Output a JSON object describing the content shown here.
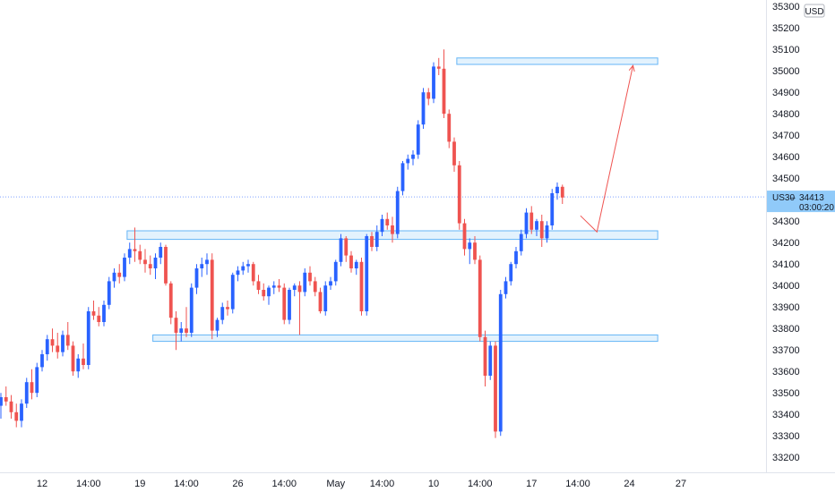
{
  "chart_data": {
    "type": "candlestick",
    "symbol": "US30",
    "currency": "USD",
    "last_price_label": "34413",
    "last_price": 34413,
    "countdown": "03:00:20",
    "ylim": [
      33130,
      35330
    ],
    "y_ticks": [
      33200,
      33300,
      33400,
      33500,
      33600,
      33700,
      33800,
      33900,
      34000,
      34100,
      34200,
      34300,
      34400,
      34500,
      34600,
      34700,
      34800,
      34900,
      35000,
      35100,
      35200,
      35300
    ],
    "x_ticks": [
      {
        "label": "12",
        "idx": 8
      },
      {
        "label": "14:00",
        "idx": 17
      },
      {
        "label": "19",
        "idx": 27
      },
      {
        "label": "14:00",
        "idx": 36
      },
      {
        "label": "26",
        "idx": 46
      },
      {
        "label": "14:00",
        "idx": 55
      },
      {
        "label": "May",
        "idx": 65
      },
      {
        "label": "14:00",
        "idx": 74
      },
      {
        "label": "10",
        "idx": 84
      },
      {
        "label": "14:00",
        "idx": 93
      },
      {
        "label": "17",
        "idx": 103
      },
      {
        "label": "14:00",
        "idx": 112
      },
      {
        "label": "24",
        "idx": 122
      },
      {
        "label": "27",
        "idx": 132
      }
    ],
    "candles": [
      [
        33440,
        33500,
        33380,
        33480
      ],
      [
        33480,
        33530,
        33440,
        33460
      ],
      [
        33460,
        33490,
        33380,
        33410
      ],
      [
        33410,
        33450,
        33340,
        33370
      ],
      [
        33370,
        33470,
        33340,
        33450
      ],
      [
        33450,
        33570,
        33430,
        33550
      ],
      [
        33550,
        33610,
        33470,
        33500
      ],
      [
        33500,
        33640,
        33480,
        33620
      ],
      [
        33620,
        33700,
        33600,
        33680
      ],
      [
        33680,
        33770,
        33650,
        33750
      ],
      [
        33750,
        33800,
        33690,
        33720
      ],
      [
        33720,
        33780,
        33660,
        33690
      ],
      [
        33690,
        33790,
        33670,
        33770
      ],
      [
        33770,
        33830,
        33700,
        33720
      ],
      [
        33720,
        33740,
        33580,
        33600
      ],
      [
        33600,
        33680,
        33570,
        33660
      ],
      [
        33660,
        33730,
        33610,
        33630
      ],
      [
        33630,
        33900,
        33610,
        33880
      ],
      [
        33880,
        33930,
        33840,
        33860
      ],
      [
        33860,
        33900,
        33810,
        33830
      ],
      [
        33830,
        33930,
        33810,
        33910
      ],
      [
        33910,
        34040,
        33890,
        34020
      ],
      [
        34020,
        34080,
        33990,
        34060
      ],
      [
        34060,
        34100,
        34010,
        34040
      ],
      [
        34040,
        34150,
        34020,
        34130
      ],
      [
        34130,
        34200,
        34100,
        34170
      ],
      [
        34170,
        34270,
        34110,
        34160
      ],
      [
        34160,
        34190,
        34100,
        34120
      ],
      [
        34120,
        34170,
        34060,
        34100
      ],
      [
        34100,
        34140,
        34050,
        34080
      ],
      [
        34080,
        34150,
        34030,
        34130
      ],
      [
        34130,
        34200,
        34100,
        34180
      ],
      [
        34180,
        34190,
        34000,
        34010
      ],
      [
        34010,
        34020,
        33820,
        33850
      ],
      [
        33850,
        33880,
        33700,
        33780
      ],
      [
        33780,
        33830,
        33740,
        33800
      ],
      [
        33800,
        33900,
        33760,
        33780
      ],
      [
        33780,
        34010,
        33760,
        33990
      ],
      [
        33990,
        34100,
        33960,
        34080
      ],
      [
        34080,
        34130,
        34040,
        34100
      ],
      [
        34100,
        34150,
        34050,
        34120
      ],
      [
        34120,
        34150,
        33750,
        33790
      ],
      [
        33790,
        33850,
        33760,
        33840
      ],
      [
        33840,
        33920,
        33820,
        33900
      ],
      [
        33900,
        33930,
        33860,
        33890
      ],
      [
        33890,
        34060,
        33870,
        34050
      ],
      [
        34050,
        34090,
        34020,
        34070
      ],
      [
        34070,
        34110,
        34050,
        34090
      ],
      [
        34090,
        34120,
        34060,
        34100
      ],
      [
        34100,
        34110,
        34000,
        34020
      ],
      [
        34020,
        34050,
        33960,
        33980
      ],
      [
        33980,
        34010,
        33930,
        33950
      ],
      [
        33950,
        34000,
        33910,
        33990
      ],
      [
        33990,
        34020,
        33960,
        34000
      ],
      [
        34000,
        34030,
        33970,
        33990
      ],
      [
        33990,
        34010,
        33820,
        33840
      ],
      [
        33840,
        33990,
        33820,
        33980
      ],
      [
        33980,
        34010,
        33950,
        34000
      ],
      [
        34000,
        34020,
        33770,
        33970
      ],
      [
        33970,
        34080,
        33950,
        34060
      ],
      [
        34060,
        34090,
        34000,
        34020
      ],
      [
        34020,
        34040,
        33950,
        33970
      ],
      [
        33970,
        33990,
        33870,
        33880
      ],
      [
        33880,
        34020,
        33860,
        34000
      ],
      [
        34000,
        34040,
        33980,
        34020
      ],
      [
        34020,
        34120,
        34000,
        34110
      ],
      [
        34110,
        34240,
        34090,
        34220
      ],
      [
        34220,
        34230,
        34110,
        34140
      ],
      [
        34140,
        34160,
        34060,
        34080
      ],
      [
        34080,
        34120,
        34050,
        34110
      ],
      [
        34110,
        34130,
        33860,
        33880
      ],
      [
        33880,
        34240,
        33860,
        34230
      ],
      [
        34230,
        34250,
        34160,
        34180
      ],
      [
        34180,
        34280,
        34160,
        34250
      ],
      [
        34250,
        34330,
        34230,
        34310
      ],
      [
        34310,
        34340,
        34260,
        34280
      ],
      [
        34280,
        34320,
        34200,
        34240
      ],
      [
        34240,
        34460,
        34220,
        34440
      ],
      [
        34440,
        34580,
        34420,
        34570
      ],
      [
        34570,
        34610,
        34540,
        34590
      ],
      [
        34590,
        34630,
        34560,
        34610
      ],
      [
        34610,
        34770,
        34590,
        34750
      ],
      [
        34750,
        34920,
        34730,
        34900
      ],
      [
        34900,
        34920,
        34840,
        34870
      ],
      [
        34870,
        35040,
        34850,
        35020
      ],
      [
        35020,
        35060,
        34980,
        35010
      ],
      [
        35010,
        35100,
        34780,
        34800
      ],
      [
        34800,
        34820,
        34640,
        34670
      ],
      [
        34670,
        34690,
        34530,
        34560
      ],
      [
        34560,
        34580,
        34260,
        34290
      ],
      [
        34290,
        34310,
        34140,
        34170
      ],
      [
        34170,
        34220,
        34100,
        34200
      ],
      [
        34200,
        34230,
        34100,
        34120
      ],
      [
        34120,
        34140,
        33740,
        33760
      ],
      [
        33760,
        33790,
        33530,
        33580
      ],
      [
        33580,
        33740,
        33560,
        33720
      ],
      [
        33720,
        33740,
        33290,
        33320
      ],
      [
        33320,
        33980,
        33300,
        33960
      ],
      [
        33960,
        34040,
        33940,
        34020
      ],
      [
        34020,
        34110,
        34000,
        34100
      ],
      [
        34100,
        34180,
        34080,
        34160
      ],
      [
        34160,
        34260,
        34140,
        34240
      ],
      [
        34240,
        34360,
        34220,
        34340
      ],
      [
        34340,
        34370,
        34240,
        34260
      ],
      [
        34260,
        34310,
        34230,
        34300
      ],
      [
        34300,
        34330,
        34180,
        34220
      ],
      [
        34220,
        34300,
        34200,
        34280
      ],
      [
        34280,
        34450,
        34260,
        34430
      ],
      [
        34430,
        34480,
        34400,
        34460
      ],
      [
        34460,
        34470,
        34380,
        34410
      ]
    ],
    "zones": [
      {
        "x0": 88.5,
        "x1": 127.5,
        "y0": 35030,
        "y1": 35060
      },
      {
        "x0": 24.5,
        "x1": 127.5,
        "y0": 34215,
        "y1": 34255
      },
      {
        "x0": 29.5,
        "x1": 127.5,
        "y0": 33740,
        "y1": 33770
      }
    ],
    "projection": [
      {
        "idx": 112.5,
        "price": 34325
      },
      {
        "idx": 115.7,
        "price": 34250
      },
      {
        "idx": 122.7,
        "price": 35025
      }
    ],
    "up_color": "#2962ff",
    "down_color": "#ef5350",
    "zone_fill": "#e3f2fd",
    "zone_border": "#64b5f6",
    "badge_color": "#90caf9"
  }
}
